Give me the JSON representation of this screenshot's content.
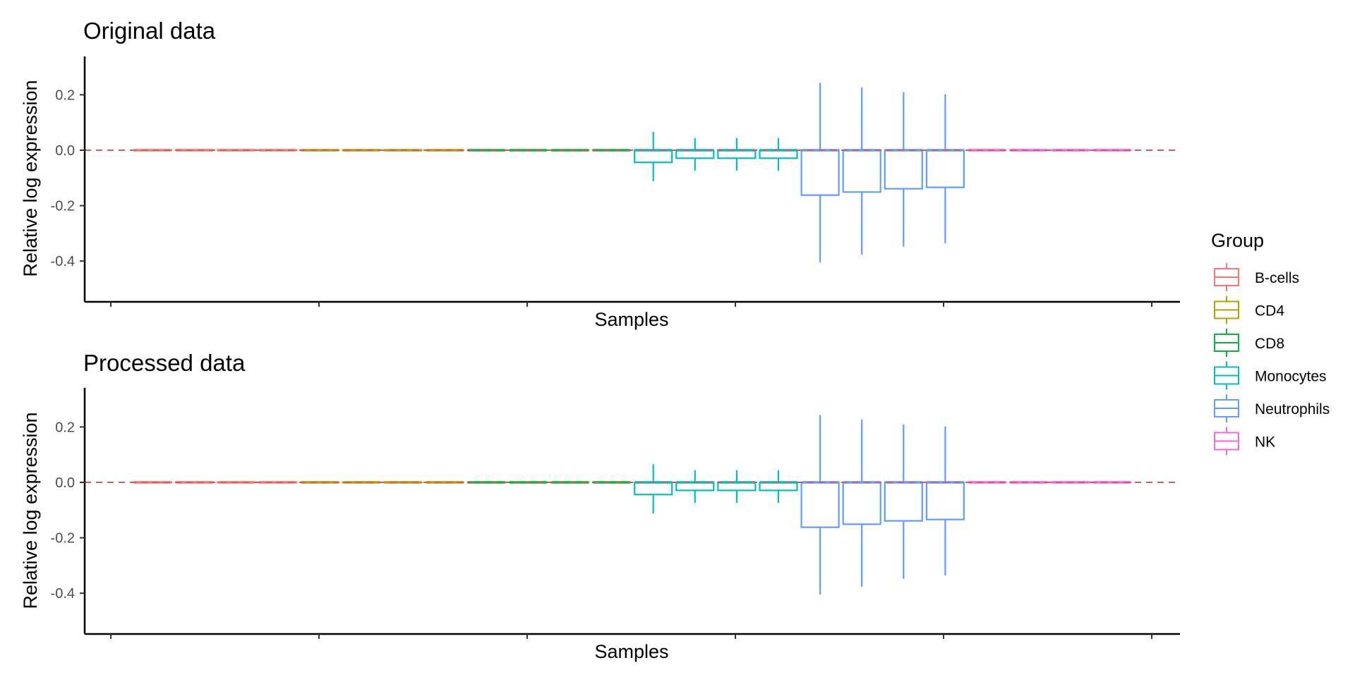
{
  "chart_data": {
    "type": "boxplot",
    "shared": {
      "xlabel": "Samples",
      "ylabel": "Relative log expression",
      "ylim": [
        -0.445,
        0.275
      ],
      "yticks": [
        -0.4,
        -0.2,
        0.0,
        0.2
      ],
      "ytick_labels": [
        "-0.4",
        "-0.2",
        "0.0",
        "0.2"
      ],
      "reference_line": 0.0,
      "reference_line_color": "#E0525C",
      "x_tick_count": 6,
      "grid": false,
      "legend_position": "right"
    },
    "legend": {
      "title": "Group",
      "items": [
        {
          "name": "B-cells",
          "color": "#F8766D"
        },
        {
          "name": "CD4",
          "color": "#B79F00"
        },
        {
          "name": "CD8",
          "color": "#00BA38"
        },
        {
          "name": "Monocytes",
          "color": "#00BFC4"
        },
        {
          "name": "Neutrophils",
          "color": "#619CFF"
        },
        {
          "name": "NK",
          "color": "#F564E3"
        }
      ]
    },
    "panels": [
      {
        "title": "Original data",
        "boxes": [
          {
            "group": "B-cells",
            "lower_whisker": 0,
            "q1": 0,
            "median": 0,
            "q3": 0,
            "upper_whisker": 0
          },
          {
            "group": "B-cells",
            "lower_whisker": 0,
            "q1": 0,
            "median": 0,
            "q3": 0,
            "upper_whisker": 0
          },
          {
            "group": "B-cells",
            "lower_whisker": 0,
            "q1": 0,
            "median": 0,
            "q3": 0,
            "upper_whisker": 0
          },
          {
            "group": "B-cells",
            "lower_whisker": 0,
            "q1": 0,
            "median": 0,
            "q3": 0,
            "upper_whisker": 0
          },
          {
            "group": "CD4",
            "lower_whisker": 0,
            "q1": 0,
            "median": 0,
            "q3": 0,
            "upper_whisker": 0
          },
          {
            "group": "CD4",
            "lower_whisker": 0,
            "q1": 0,
            "median": 0,
            "q3": 0,
            "upper_whisker": 0
          },
          {
            "group": "CD4",
            "lower_whisker": 0,
            "q1": 0,
            "median": 0,
            "q3": 0,
            "upper_whisker": 0
          },
          {
            "group": "CD4",
            "lower_whisker": 0,
            "q1": 0,
            "median": 0,
            "q3": 0,
            "upper_whisker": 0
          },
          {
            "group": "CD8",
            "lower_whisker": 0,
            "q1": 0,
            "median": 0,
            "q3": 0,
            "upper_whisker": 0
          },
          {
            "group": "CD8",
            "lower_whisker": 0,
            "q1": 0,
            "median": 0,
            "q3": 0,
            "upper_whisker": 0
          },
          {
            "group": "CD8",
            "lower_whisker": 0,
            "q1": 0,
            "median": 0,
            "q3": 0,
            "upper_whisker": 0
          },
          {
            "group": "CD8",
            "lower_whisker": 0,
            "q1": 0,
            "median": 0,
            "q3": 0,
            "upper_whisker": 0
          },
          {
            "group": "Monocytes",
            "lower_whisker": -0.112,
            "q1": -0.044,
            "median": 0,
            "q3": 0,
            "upper_whisker": 0.066
          },
          {
            "group": "Monocytes",
            "lower_whisker": -0.074,
            "q1": -0.029,
            "median": 0,
            "q3": 0,
            "upper_whisker": 0.044
          },
          {
            "group": "Monocytes",
            "lower_whisker": -0.074,
            "q1": -0.029,
            "median": 0,
            "q3": 0,
            "upper_whisker": 0.044
          },
          {
            "group": "Monocytes",
            "lower_whisker": -0.074,
            "q1": -0.029,
            "median": 0,
            "q3": 0,
            "upper_whisker": 0.044
          },
          {
            "group": "Neutrophils",
            "lower_whisker": -0.405,
            "q1": -0.162,
            "median": 0,
            "q3": 0,
            "upper_whisker": 0.243
          },
          {
            "group": "Neutrophils",
            "lower_whisker": -0.377,
            "q1": -0.151,
            "median": 0,
            "q3": 0,
            "upper_whisker": 0.227
          },
          {
            "group": "Neutrophils",
            "lower_whisker": -0.348,
            "q1": -0.139,
            "median": 0,
            "q3": 0,
            "upper_whisker": 0.209
          },
          {
            "group": "Neutrophils",
            "lower_whisker": -0.336,
            "q1": -0.134,
            "median": 0,
            "q3": 0,
            "upper_whisker": 0.202
          },
          {
            "group": "NK",
            "lower_whisker": 0,
            "q1": 0,
            "median": 0,
            "q3": 0,
            "upper_whisker": 0
          },
          {
            "group": "NK",
            "lower_whisker": 0,
            "q1": 0,
            "median": 0,
            "q3": 0,
            "upper_whisker": 0
          },
          {
            "group": "NK",
            "lower_whisker": 0,
            "q1": 0,
            "median": 0,
            "q3": 0,
            "upper_whisker": 0
          },
          {
            "group": "NK",
            "lower_whisker": 0,
            "q1": 0,
            "median": 0,
            "q3": 0,
            "upper_whisker": 0
          }
        ]
      },
      {
        "title": "Processed data",
        "boxes": [
          {
            "group": "B-cells",
            "lower_whisker": 0,
            "q1": 0,
            "median": 0,
            "q3": 0,
            "upper_whisker": 0
          },
          {
            "group": "B-cells",
            "lower_whisker": 0,
            "q1": 0,
            "median": 0,
            "q3": 0,
            "upper_whisker": 0
          },
          {
            "group": "B-cells",
            "lower_whisker": 0,
            "q1": 0,
            "median": 0,
            "q3": 0,
            "upper_whisker": 0
          },
          {
            "group": "B-cells",
            "lower_whisker": 0,
            "q1": 0,
            "median": 0,
            "q3": 0,
            "upper_whisker": 0
          },
          {
            "group": "CD4",
            "lower_whisker": 0,
            "q1": 0,
            "median": 0,
            "q3": 0,
            "upper_whisker": 0
          },
          {
            "group": "CD4",
            "lower_whisker": 0,
            "q1": 0,
            "median": 0,
            "q3": 0,
            "upper_whisker": 0
          },
          {
            "group": "CD4",
            "lower_whisker": 0,
            "q1": 0,
            "median": 0,
            "q3": 0,
            "upper_whisker": 0
          },
          {
            "group": "CD4",
            "lower_whisker": 0,
            "q1": 0,
            "median": 0,
            "q3": 0,
            "upper_whisker": 0
          },
          {
            "group": "CD8",
            "lower_whisker": 0,
            "q1": 0,
            "median": 0,
            "q3": 0,
            "upper_whisker": 0
          },
          {
            "group": "CD8",
            "lower_whisker": 0,
            "q1": 0,
            "median": 0,
            "q3": 0,
            "upper_whisker": 0
          },
          {
            "group": "CD8",
            "lower_whisker": 0,
            "q1": 0,
            "median": 0,
            "q3": 0,
            "upper_whisker": 0
          },
          {
            "group": "CD8",
            "lower_whisker": 0,
            "q1": 0,
            "median": 0,
            "q3": 0,
            "upper_whisker": 0
          },
          {
            "group": "Monocytes",
            "lower_whisker": -0.112,
            "q1": -0.044,
            "median": 0,
            "q3": 0,
            "upper_whisker": 0.066
          },
          {
            "group": "Monocytes",
            "lower_whisker": -0.074,
            "q1": -0.029,
            "median": 0,
            "q3": 0,
            "upper_whisker": 0.044
          },
          {
            "group": "Monocytes",
            "lower_whisker": -0.074,
            "q1": -0.029,
            "median": 0,
            "q3": 0,
            "upper_whisker": 0.044
          },
          {
            "group": "Monocytes",
            "lower_whisker": -0.074,
            "q1": -0.029,
            "median": 0,
            "q3": 0,
            "upper_whisker": 0.044
          },
          {
            "group": "Neutrophils",
            "lower_whisker": -0.405,
            "q1": -0.162,
            "median": 0,
            "q3": 0,
            "upper_whisker": 0.243
          },
          {
            "group": "Neutrophils",
            "lower_whisker": -0.377,
            "q1": -0.151,
            "median": 0,
            "q3": 0,
            "upper_whisker": 0.227
          },
          {
            "group": "Neutrophils",
            "lower_whisker": -0.348,
            "q1": -0.139,
            "median": 0,
            "q3": 0,
            "upper_whisker": 0.209
          },
          {
            "group": "Neutrophils",
            "lower_whisker": -0.336,
            "q1": -0.134,
            "median": 0,
            "q3": 0,
            "upper_whisker": 0.202
          },
          {
            "group": "NK",
            "lower_whisker": 0,
            "q1": 0,
            "median": 0,
            "q3": 0,
            "upper_whisker": 0
          },
          {
            "group": "NK",
            "lower_whisker": 0,
            "q1": 0,
            "median": 0,
            "q3": 0,
            "upper_whisker": 0
          },
          {
            "group": "NK",
            "lower_whisker": 0,
            "q1": 0,
            "median": 0,
            "q3": 0,
            "upper_whisker": 0
          },
          {
            "group": "NK",
            "lower_whisker": 0,
            "q1": 0,
            "median": 0,
            "q3": 0,
            "upper_whisker": 0
          }
        ]
      }
    ]
  }
}
